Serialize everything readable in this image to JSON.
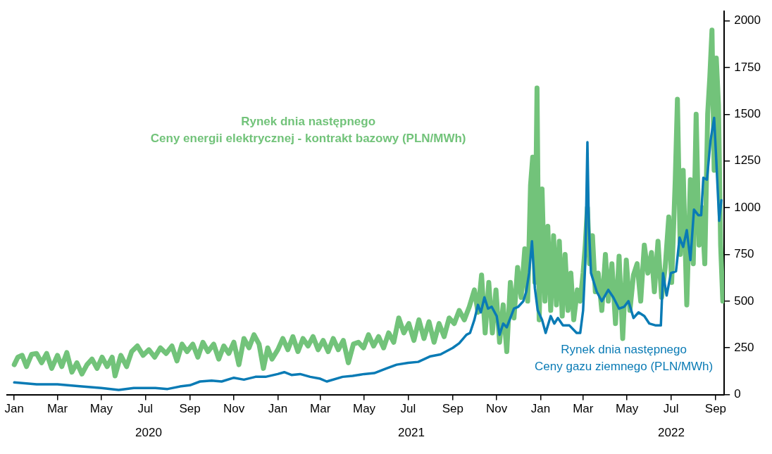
{
  "chart_data": {
    "type": "line",
    "xlim": [
      "2019-12-22",
      "2022-09-13"
    ],
    "ylim": [
      0,
      2050
    ],
    "yticks": [
      0,
      250,
      500,
      750,
      1000,
      1250,
      1500,
      1750,
      2000
    ],
    "xticks": [
      {
        "value": "2020-01-01",
        "label": "Jan"
      },
      {
        "value": "2020-03-01",
        "label": "Mar"
      },
      {
        "value": "2020-05-01",
        "label": "May"
      },
      {
        "value": "2020-07-01",
        "label": "Jul"
      },
      {
        "value": "2020-09-01",
        "label": "Sep"
      },
      {
        "value": "2020-11-01",
        "label": "Nov"
      },
      {
        "value": "2021-01-01",
        "label": "Jan"
      },
      {
        "value": "2021-03-01",
        "label": "Mar"
      },
      {
        "value": "2021-05-01",
        "label": "May"
      },
      {
        "value": "2021-07-01",
        "label": "Jul"
      },
      {
        "value": "2021-09-01",
        "label": "Sep"
      },
      {
        "value": "2021-11-01",
        "label": "Nov"
      },
      {
        "value": "2022-01-01",
        "label": "Jan"
      },
      {
        "value": "2022-03-01",
        "label": "Mar"
      },
      {
        "value": "2022-05-01",
        "label": "May"
      },
      {
        "value": "2022-07-01",
        "label": "Jul"
      },
      {
        "value": "2022-09-01",
        "label": "Sep"
      }
    ],
    "annotations": [
      "2020",
      "2021",
      "2022"
    ],
    "grid": false,
    "legend": false,
    "marker": "none",
    "line_style": "solid",
    "series": [
      {
        "name": "Rynek dnia następnego\nCeny energii elektrycznej - kontrakt bazowy (PLN/MWh)",
        "color": "#72c37a",
        "x": [
          "2020-01-01",
          "2020-01-06",
          "2020-01-12",
          "2020-01-18",
          "2020-01-25",
          "2020-02-01",
          "2020-02-08",
          "2020-02-15",
          "2020-02-22",
          "2020-03-01",
          "2020-03-07",
          "2020-03-14",
          "2020-03-21",
          "2020-03-28",
          "2020-04-04",
          "2020-04-11",
          "2020-04-18",
          "2020-04-25",
          "2020-05-02",
          "2020-05-09",
          "2020-05-16",
          "2020-05-20",
          "2020-05-28",
          "2020-06-05",
          "2020-06-12",
          "2020-06-20",
          "2020-06-28",
          "2020-07-06",
          "2020-07-14",
          "2020-07-22",
          "2020-07-30",
          "2020-08-07",
          "2020-08-14",
          "2020-08-21",
          "2020-08-28",
          "2020-09-05",
          "2020-09-12",
          "2020-09-19",
          "2020-09-26",
          "2020-10-04",
          "2020-10-11",
          "2020-10-18",
          "2020-10-25",
          "2020-11-01",
          "2020-11-08",
          "2020-11-15",
          "2020-11-22",
          "2020-11-29",
          "2020-12-06",
          "2020-12-12",
          "2020-12-18",
          "2020-12-24",
          "2021-01-01",
          "2021-01-08",
          "2021-01-15",
          "2021-01-22",
          "2021-01-29",
          "2021-02-05",
          "2021-02-12",
          "2021-02-19",
          "2021-02-26",
          "2021-03-05",
          "2021-03-12",
          "2021-03-19",
          "2021-03-26",
          "2021-04-02",
          "2021-04-09",
          "2021-04-16",
          "2021-04-23",
          "2021-04-30",
          "2021-05-07",
          "2021-05-14",
          "2021-05-21",
          "2021-05-28",
          "2021-06-04",
          "2021-06-11",
          "2021-06-18",
          "2021-06-25",
          "2021-07-02",
          "2021-07-09",
          "2021-07-16",
          "2021-07-23",
          "2021-07-30",
          "2021-08-06",
          "2021-08-13",
          "2021-08-20",
          "2021-08-27",
          "2021-09-03",
          "2021-09-10",
          "2021-09-17",
          "2021-09-24",
          "2021-10-01",
          "2021-10-06",
          "2021-10-11",
          "2021-10-16",
          "2021-10-21",
          "2021-10-26",
          "2021-10-31",
          "2021-11-05",
          "2021-11-10",
          "2021-11-15",
          "2021-11-20",
          "2021-11-25",
          "2021-11-30",
          "2021-12-05",
          "2021-12-10",
          "2021-12-14",
          "2021-12-18",
          "2021-12-21",
          "2021-12-24",
          "2021-12-27",
          "2021-12-30",
          "2022-01-03",
          "2022-01-07",
          "2022-01-11",
          "2022-01-15",
          "2022-01-19",
          "2022-01-23",
          "2022-01-27",
          "2022-01-31",
          "2022-02-04",
          "2022-02-08",
          "2022-02-12",
          "2022-02-16",
          "2022-02-21",
          "2022-02-25",
          "2022-03-01",
          "2022-03-04",
          "2022-03-07",
          "2022-03-10",
          "2022-03-14",
          "2022-03-18",
          "2022-03-22",
          "2022-03-27",
          "2022-04-01",
          "2022-04-05",
          "2022-04-10",
          "2022-04-15",
          "2022-04-20",
          "2022-04-25",
          "2022-04-30",
          "2022-05-05",
          "2022-05-10",
          "2022-05-15",
          "2022-05-20",
          "2022-05-25",
          "2022-05-30",
          "2022-06-04",
          "2022-06-08",
          "2022-06-13",
          "2022-06-18",
          "2022-06-23",
          "2022-06-28",
          "2022-07-02",
          "2022-07-07",
          "2022-07-10",
          "2022-07-14",
          "2022-07-18",
          "2022-07-23",
          "2022-07-28",
          "2022-08-01",
          "2022-08-05",
          "2022-08-09",
          "2022-08-13",
          "2022-08-17",
          "2022-08-21",
          "2022-08-24",
          "2022-08-27",
          "2022-08-30",
          "2022-09-02",
          "2022-09-05",
          "2022-09-08",
          "2022-09-11"
        ],
        "values": [
          160,
          200,
          210,
          150,
          215,
          220,
          170,
          220,
          140,
          210,
          150,
          225,
          120,
          170,
          110,
          160,
          190,
          140,
          200,
          150,
          200,
          100,
          210,
          150,
          230,
          260,
          210,
          240,
          200,
          250,
          220,
          260,
          180,
          270,
          230,
          270,
          200,
          280,
          230,
          270,
          190,
          260,
          220,
          280,
          160,
          300,
          250,
          320,
          270,
          140,
          250,
          190,
          240,
          300,
          240,
          310,
          230,
          300,
          260,
          310,
          240,
          290,
          230,
          300,
          240,
          290,
          170,
          270,
          280,
          250,
          320,
          260,
          310,
          250,
          330,
          280,
          410,
          330,
          380,
          290,
          400,
          300,
          390,
          280,
          380,
          310,
          410,
          380,
          450,
          400,
          470,
          560,
          440,
          640,
          330,
          600,
          330,
          560,
          280,
          480,
          230,
          600,
          410,
          680,
          520,
          780,
          500,
          1120,
          1270,
          600,
          1640,
          400,
          1100,
          500,
          900,
          450,
          850,
          480,
          820,
          420,
          750,
          450,
          650,
          400,
          560,
          500,
          650,
          800,
          1000,
          700,
          850,
          550,
          650,
          450,
          750,
          500,
          700,
          380,
          740,
          300,
          720,
          450,
          640,
          700,
          500,
          800,
          650,
          760,
          550,
          820,
          520,
          680,
          950,
          600,
          1150,
          1580,
          750,
          1200,
          480,
          1150,
          700,
          1500,
          800,
          1000,
          700,
          1500,
          1700,
          1950,
          1200,
          1800,
          1550,
          800,
          500
        ]
      },
      {
        "name": "Rynek dnia następnego\nCeny gazu ziemnego (PLN/MWh)",
        "color": "#0a7bb5",
        "x": [
          "2020-01-01",
          "2020-02-01",
          "2020-03-01",
          "2020-04-01",
          "2020-05-01",
          "2020-05-25",
          "2020-06-15",
          "2020-07-15",
          "2020-08-01",
          "2020-08-20",
          "2020-09-01",
          "2020-09-15",
          "2020-10-01",
          "2020-10-15",
          "2020-11-01",
          "2020-11-15",
          "2020-12-01",
          "2020-12-15",
          "2021-01-01",
          "2021-01-10",
          "2021-01-20",
          "2021-02-01",
          "2021-02-15",
          "2021-03-01",
          "2021-03-10",
          "2021-04-01",
          "2021-04-15",
          "2021-05-01",
          "2021-05-15",
          "2021-06-01",
          "2021-06-15",
          "2021-07-01",
          "2021-07-15",
          "2021-08-01",
          "2021-08-15",
          "2021-09-01",
          "2021-09-10",
          "2021-09-20",
          "2021-09-25",
          "2021-10-01",
          "2021-10-06",
          "2021-10-10",
          "2021-10-15",
          "2021-10-20",
          "2021-10-25",
          "2021-11-01",
          "2021-11-05",
          "2021-11-10",
          "2021-11-15",
          "2021-11-25",
          "2021-12-01",
          "2021-12-08",
          "2021-12-12",
          "2021-12-16",
          "2021-12-20",
          "2021-12-24",
          "2021-12-28",
          "2022-01-03",
          "2022-01-08",
          "2022-01-15",
          "2022-01-20",
          "2022-01-25",
          "2022-02-01",
          "2022-02-10",
          "2022-02-20",
          "2022-02-25",
          "2022-03-01",
          "2022-03-04",
          "2022-03-07",
          "2022-03-09",
          "2022-03-12",
          "2022-03-20",
          "2022-03-27",
          "2022-04-05",
          "2022-04-12",
          "2022-04-20",
          "2022-04-27",
          "2022-05-03",
          "2022-05-10",
          "2022-05-17",
          "2022-05-25",
          "2022-06-01",
          "2022-06-10",
          "2022-06-17",
          "2022-06-20",
          "2022-06-25",
          "2022-07-01",
          "2022-07-08",
          "2022-07-13",
          "2022-07-18",
          "2022-07-23",
          "2022-07-28",
          "2022-08-02",
          "2022-08-08",
          "2022-08-12",
          "2022-08-15",
          "2022-08-20",
          "2022-08-25",
          "2022-08-30",
          "2022-09-02",
          "2022-09-06",
          "2022-09-09"
        ],
        "values": [
          65,
          55,
          55,
          45,
          35,
          25,
          35,
          35,
          30,
          45,
          50,
          70,
          75,
          70,
          90,
          80,
          95,
          95,
          110,
          120,
          105,
          110,
          95,
          85,
          70,
          95,
          100,
          110,
          115,
          140,
          160,
          170,
          175,
          205,
          215,
          250,
          275,
          320,
          330,
          400,
          480,
          440,
          520,
          460,
          470,
          420,
          320,
          380,
          360,
          460,
          470,
          500,
          550,
          650,
          820,
          570,
          450,
          400,
          330,
          420,
          380,
          410,
          370,
          370,
          330,
          330,
          450,
          700,
          1350,
          900,
          650,
          550,
          500,
          560,
          520,
          460,
          470,
          500,
          410,
          440,
          420,
          380,
          370,
          370,
          650,
          530,
          650,
          660,
          840,
          790,
          880,
          720,
          990,
          960,
          960,
          1160,
          1150,
          1360,
          1480,
          1250,
          930,
          1040
        ]
      }
    ]
  }
}
